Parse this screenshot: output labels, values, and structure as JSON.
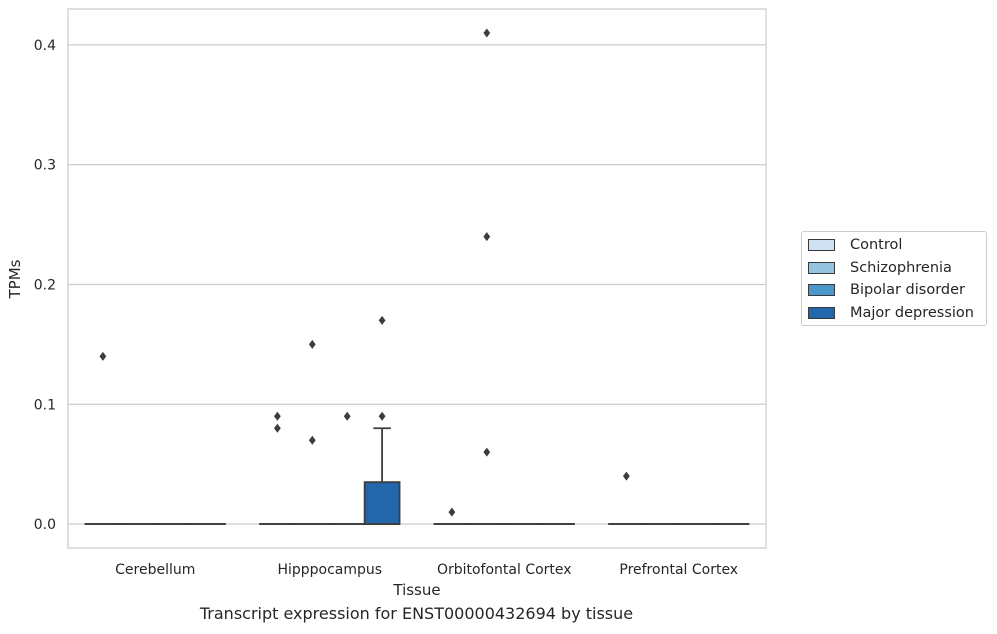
{
  "chart_data": {
    "type": "box",
    "title": "",
    "caption": "Transcript expression for ENST00000432694 by tissue",
    "xlabel": "Tissue",
    "ylabel": "TPMs",
    "ylim": [
      -0.02,
      0.43
    ],
    "yticks": [
      0.0,
      0.1,
      0.2,
      0.3,
      0.4
    ],
    "ytick_labels": [
      "0.0",
      "0.1",
      "0.2",
      "0.3",
      "0.4"
    ],
    "grid": "horizontal",
    "legend_position": "right",
    "categories": [
      "Cerebellum",
      "Hipppocampus",
      "Orbitofontal Cortex",
      "Prefrontal Cortex"
    ],
    "series": [
      {
        "name": "Control",
        "color": "#d0e1f2",
        "boxes": [
          {
            "q1": 0,
            "median": 0,
            "q3": 0,
            "whisker_low": 0,
            "whisker_high": 0,
            "outliers": [
              0.14
            ]
          },
          {
            "q1": 0,
            "median": 0,
            "q3": 0,
            "whisker_low": 0,
            "whisker_high": 0,
            "outliers": [
              0.09,
              0.08
            ]
          },
          {
            "q1": 0,
            "median": 0,
            "q3": 0,
            "whisker_low": 0,
            "whisker_high": 0,
            "outliers": [
              0.01
            ]
          },
          {
            "q1": 0,
            "median": 0,
            "q3": 0,
            "whisker_low": 0,
            "whisker_high": 0,
            "outliers": [
              0.04
            ]
          }
        ]
      },
      {
        "name": "Schizophrenia",
        "color": "#94c4df",
        "boxes": [
          {
            "q1": 0,
            "median": 0,
            "q3": 0,
            "whisker_low": 0,
            "whisker_high": 0,
            "outliers": []
          },
          {
            "q1": 0,
            "median": 0,
            "q3": 0,
            "whisker_low": 0,
            "whisker_high": 0,
            "outliers": [
              0.15,
              0.07
            ]
          },
          {
            "q1": 0,
            "median": 0,
            "q3": 0,
            "whisker_low": 0,
            "whisker_high": 0,
            "outliers": [
              0.41,
              0.24,
              0.06
            ]
          },
          {
            "q1": 0,
            "median": 0,
            "q3": 0,
            "whisker_low": 0,
            "whisker_high": 0,
            "outliers": []
          }
        ]
      },
      {
        "name": "Bipolar disorder",
        "color": "#4a98c9",
        "boxes": [
          {
            "q1": 0,
            "median": 0,
            "q3": 0,
            "whisker_low": 0,
            "whisker_high": 0,
            "outliers": []
          },
          {
            "q1": 0,
            "median": 0,
            "q3": 0,
            "whisker_low": 0,
            "whisker_high": 0,
            "outliers": [
              0.09
            ]
          },
          {
            "q1": 0,
            "median": 0,
            "q3": 0,
            "whisker_low": 0,
            "whisker_high": 0,
            "outliers": []
          },
          {
            "q1": 0,
            "median": 0,
            "q3": 0,
            "whisker_low": 0,
            "whisker_high": 0,
            "outliers": []
          }
        ]
      },
      {
        "name": "Major depression",
        "color": "#2266ac",
        "boxes": [
          {
            "q1": 0,
            "median": 0,
            "q3": 0,
            "whisker_low": 0,
            "whisker_high": 0,
            "outliers": []
          },
          {
            "q1": 0,
            "median": 0,
            "q3": 0.035,
            "whisker_low": 0,
            "whisker_high": 0.08,
            "outliers": [
              0.17,
              0.09
            ]
          },
          {
            "q1": 0,
            "median": 0,
            "q3": 0,
            "whisker_low": 0,
            "whisker_high": 0,
            "outliers": []
          },
          {
            "q1": 0,
            "median": 0,
            "q3": 0,
            "whisker_low": 0,
            "whisker_high": 0,
            "outliers": []
          }
        ]
      }
    ]
  }
}
